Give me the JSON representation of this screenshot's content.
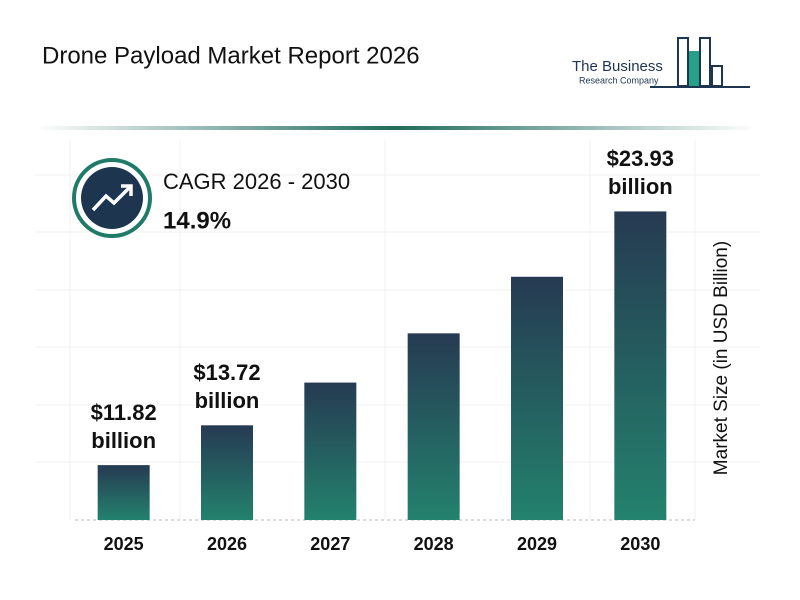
{
  "brand": [
    "The Business",
    "Research Company"
  ],
  "chart_data": {
    "type": "bar",
    "title": "Drone Payload Market Report 2026",
    "annotations": [
      "CAGR 2026 - 2030",
      "14.9%"
    ],
    "y_label": "Market Size (in USD Billion)",
    "categories": [
      "2025",
      "2026",
      "2027",
      "2028",
      "2029",
      "2030"
    ],
    "values": [
      11.82,
      13.72,
      15.76,
      18.11,
      20.81,
      23.93
    ],
    "value_labels": [
      "$11.82 billion",
      "$13.72 billion",
      null,
      null,
      null,
      "$23.93 billion"
    ],
    "colors": [
      "#263a52",
      "#23826d"
    ],
    "ylim": [
      9.2,
      25
    ]
  }
}
